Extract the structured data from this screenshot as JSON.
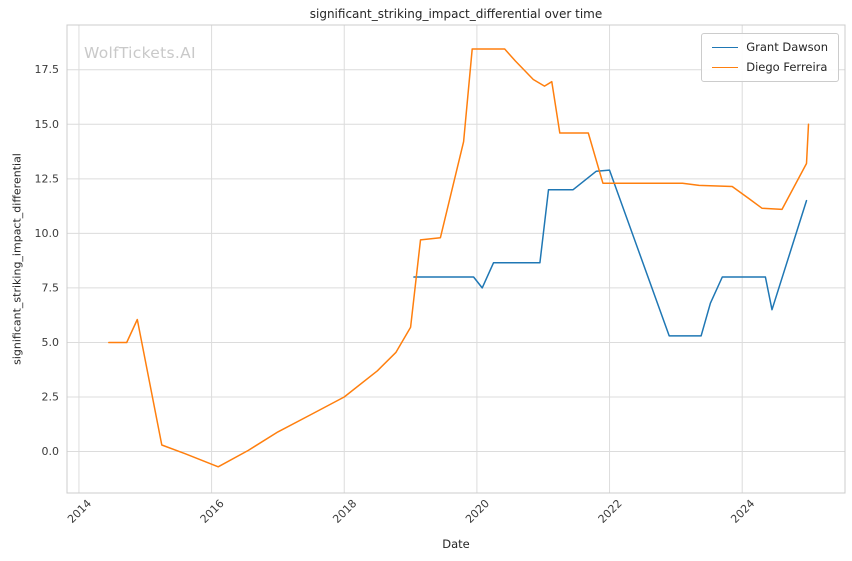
{
  "watermark": "WolfTickets.AI",
  "chart_data": {
    "type": "line",
    "title": "significant_striking_impact_differential over time",
    "xlabel": "Date",
    "ylabel": "significant_striking_impact_differential",
    "xlim": [
      2013.82,
      2025.55
    ],
    "ylim": [
      -1.9,
      19.55
    ],
    "xticks": [
      2014,
      2016,
      2018,
      2020,
      2022,
      2024
    ],
    "xtick_labels": [
      "2014",
      "2016",
      "2018",
      "2020",
      "2022",
      "2024"
    ],
    "yticks": [
      0,
      2.5,
      5,
      7.5,
      10,
      12.5,
      15,
      17.5
    ],
    "ytick_labels": [
      "0.0",
      "2.5",
      "5.0",
      "7.5",
      "10.0",
      "12.5",
      "15.0",
      "17.5"
    ],
    "grid": true,
    "legend_position": "upper right",
    "colors": {
      "grid": "#dcdcdc",
      "axes_border": "#cccccc",
      "text": "#262626",
      "tick_text": "#3b3b3b",
      "watermark": "#c9c9c9"
    },
    "series": [
      {
        "name": "Grant Dawson",
        "color": "#1f77b4",
        "points": [
          [
            2019.05,
            8.0
          ],
          [
            2019.95,
            8.0
          ],
          [
            2020.08,
            7.5
          ],
          [
            2020.25,
            8.65
          ],
          [
            2020.95,
            8.65
          ],
          [
            2021.08,
            12.0
          ],
          [
            2021.45,
            12.0
          ],
          [
            2021.8,
            12.85
          ],
          [
            2022.0,
            12.9
          ],
          [
            2022.9,
            5.3
          ],
          [
            2023.38,
            5.3
          ],
          [
            2023.52,
            6.8
          ],
          [
            2023.7,
            8.0
          ],
          [
            2024.35,
            8.0
          ],
          [
            2024.45,
            6.5
          ],
          [
            2024.97,
            11.5
          ]
        ]
      },
      {
        "name": "Diego Ferreira",
        "color": "#ff7f0e",
        "points": [
          [
            2014.45,
            5.0
          ],
          [
            2014.72,
            5.0
          ],
          [
            2014.88,
            6.05
          ],
          [
            2015.25,
            0.3
          ],
          [
            2015.6,
            -0.1
          ],
          [
            2016.1,
            -0.7
          ],
          [
            2016.55,
            0.05
          ],
          [
            2017.0,
            0.9
          ],
          [
            2017.5,
            1.7
          ],
          [
            2018.0,
            2.5
          ],
          [
            2018.5,
            3.7
          ],
          [
            2018.78,
            4.55
          ],
          [
            2019.0,
            5.7
          ],
          [
            2019.15,
            9.7
          ],
          [
            2019.45,
            9.8
          ],
          [
            2019.8,
            14.2
          ],
          [
            2019.93,
            18.45
          ],
          [
            2020.42,
            18.45
          ],
          [
            2020.58,
            17.9
          ],
          [
            2020.85,
            17.05
          ],
          [
            2021.02,
            16.75
          ],
          [
            2021.13,
            16.95
          ],
          [
            2021.25,
            14.6
          ],
          [
            2021.68,
            14.6
          ],
          [
            2021.9,
            12.3
          ],
          [
            2023.1,
            12.3
          ],
          [
            2023.35,
            12.2
          ],
          [
            2023.85,
            12.15
          ],
          [
            2024.1,
            11.6
          ],
          [
            2024.3,
            11.15
          ],
          [
            2024.6,
            11.1
          ],
          [
            2024.97,
            13.2
          ],
          [
            2025.0,
            15.0
          ]
        ]
      }
    ]
  }
}
